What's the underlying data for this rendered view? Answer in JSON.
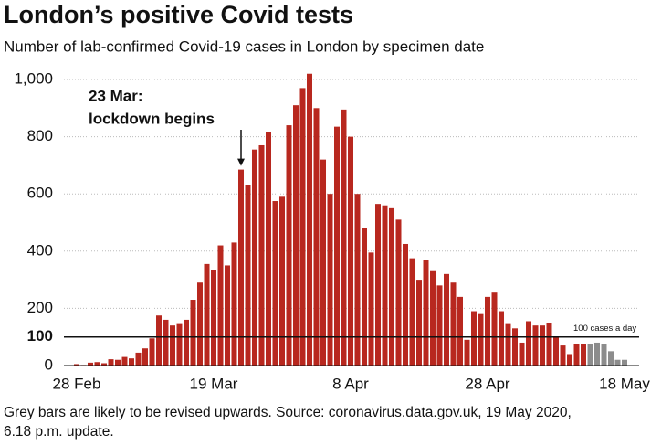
{
  "chart_data": {
    "type": "bar",
    "title": "London’s positive Covid tests",
    "subtitle": "Number of lab-confirmed Covid-19 cases in London by specimen date",
    "footnote": [
      "Grey bars are likely to be revised upwards. Source: coronavirus.data.gov.uk, 19 May 2020,",
      "6.18 p.m. update."
    ],
    "categories": [
      "28 Feb",
      null,
      null,
      null,
      null,
      null,
      null,
      null,
      null,
      null,
      null,
      null,
      null,
      null,
      null,
      null,
      null,
      null,
      null,
      null,
      "19 Mar",
      null,
      null,
      null,
      null,
      null,
      null,
      null,
      null,
      null,
      null,
      null,
      null,
      null,
      null,
      null,
      null,
      null,
      null,
      null,
      "8 Apr",
      null,
      null,
      null,
      null,
      null,
      null,
      null,
      null,
      null,
      null,
      null,
      null,
      null,
      null,
      null,
      null,
      null,
      null,
      null,
      "28 Apr",
      null,
      null,
      null,
      null,
      null,
      null,
      null,
      null,
      null,
      null,
      null,
      null,
      null,
      null,
      null,
      null,
      null,
      null,
      null,
      "18 May"
    ],
    "values": [
      5,
      2,
      10,
      12,
      8,
      22,
      20,
      30,
      25,
      45,
      60,
      95,
      175,
      160,
      140,
      145,
      160,
      230,
      290,
      355,
      335,
      420,
      350,
      430,
      685,
      630,
      755,
      770,
      815,
      575,
      590,
      840,
      910,
      970,
      1020,
      900,
      720,
      600,
      835,
      895,
      800,
      600,
      480,
      395,
      565,
      560,
      550,
      510,
      425,
      375,
      300,
      370,
      330,
      280,
      320,
      290,
      240,
      90,
      190,
      180,
      240,
      255,
      190,
      145,
      130,
      80,
      155,
      140,
      140,
      150,
      100,
      70,
      40,
      75,
      75,
      75,
      80,
      75,
      50,
      20,
      20
    ],
    "color": "#b8281f",
    "revised_color": "#8c8c8c",
    "revised_from": 75,
    "ylim": [
      0,
      1000
    ],
    "yticks": [
      0,
      100,
      200,
      400,
      600,
      800,
      {
        "value": 1000,
        "label": "1,000"
      }
    ],
    "grid": true,
    "reference": {
      "value": 100,
      "label": "100 cases a day"
    },
    "annotation": {
      "index": 24,
      "lines": [
        "23 Mar:",
        "lockdown begins"
      ]
    }
  }
}
